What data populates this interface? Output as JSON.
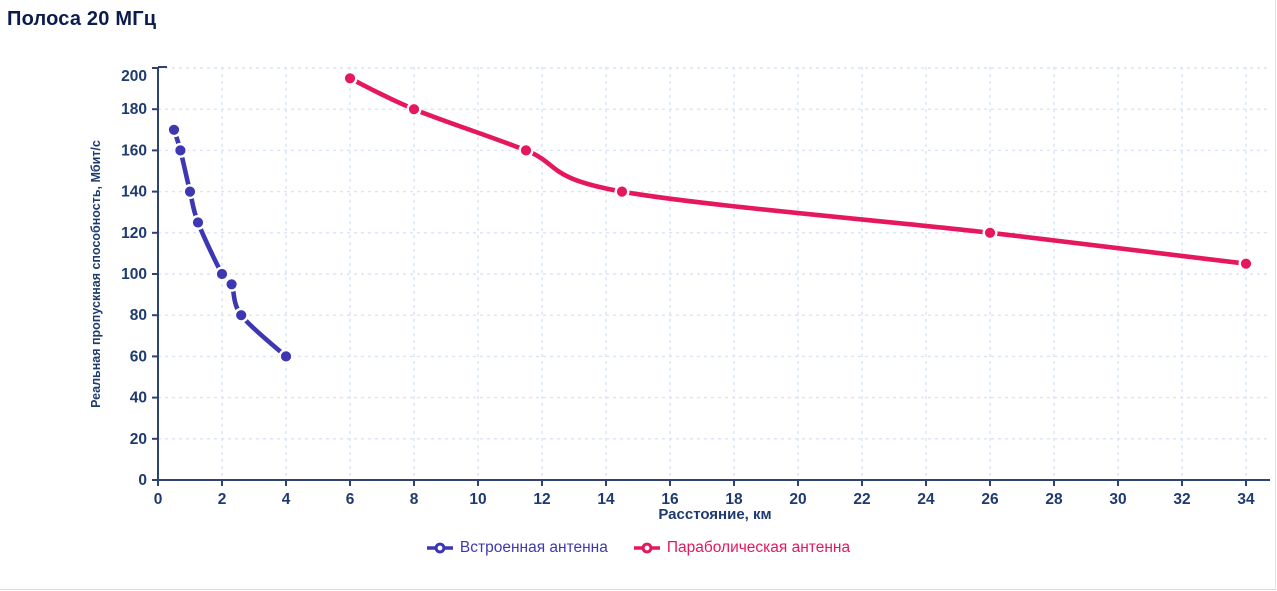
{
  "page": {
    "title": "Полоса 20 МГц"
  },
  "colors": {
    "title_text": "#0d1c4f",
    "axis_text": "#1e3a6e",
    "axis_line": "#2e4372",
    "gridline": "#d9e4f6",
    "series_built_in": "#3d38b2",
    "series_parabolic": "#e5175e",
    "background": "#ffffff"
  },
  "chart_data": {
    "type": "line",
    "title": "Полоса 20 МГц",
    "xlabel": "Расстояние, км",
    "ylabel": "Реальная пропускная способность, Мбит/с",
    "xlim": [
      0,
      34.8
    ],
    "ylim": [
      0,
      200
    ],
    "x_ticks": [
      0,
      2,
      4,
      6,
      8,
      10,
      12,
      14,
      16,
      18,
      20,
      22,
      24,
      26,
      28,
      30,
      32,
      34
    ],
    "y_ticks": [
      0,
      20,
      40,
      60,
      80,
      100,
      120,
      140,
      160,
      180,
      200
    ],
    "grid": "dashed-light-blue",
    "legend_position": "bottom-center",
    "series": [
      {
        "name": "Встроенная антенна",
        "color": "#3d38b2",
        "marker": "circle",
        "points": [
          [
            0.5,
            170
          ],
          [
            0.7,
            160
          ],
          [
            1,
            140
          ],
          [
            1.25,
            125
          ],
          [
            2,
            100
          ],
          [
            2.3,
            95
          ],
          [
            2.6,
            80
          ],
          [
            4,
            60
          ]
        ]
      },
      {
        "name": "Параболическая антенна",
        "color": "#e5175e",
        "marker": "circle",
        "points": [
          [
            6,
            195
          ],
          [
            8,
            180
          ],
          [
            11.5,
            160
          ],
          [
            14.5,
            140
          ],
          [
            26,
            120
          ],
          [
            34,
            105
          ]
        ]
      }
    ]
  }
}
